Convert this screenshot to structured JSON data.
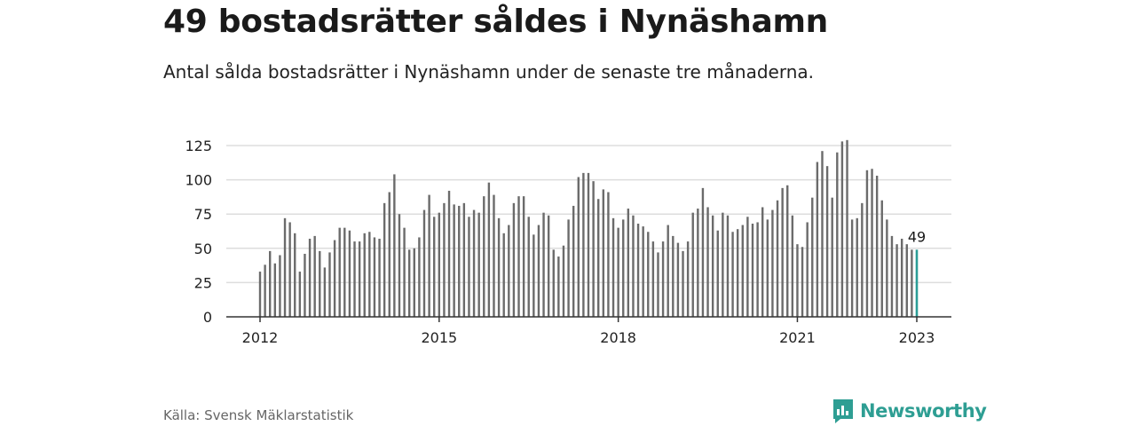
{
  "header": {
    "title": "49 bostadsrätter såldes i Nynäshamn",
    "subtitle": "Antal sålda bostadsrätter i Nynäshamn under de senaste tre månaderna."
  },
  "footer": {
    "source": "Källa: Svensk Mäklarstatistik",
    "brand": "Newsworthy"
  },
  "colors": {
    "bar": "#6b6b6b",
    "highlight": "#2a9d96",
    "grid": "#dddddd",
    "axis": "#333333",
    "brand": "#2e9e93"
  },
  "chart_data": {
    "type": "bar",
    "title": "",
    "xlabel": "",
    "ylabel": "",
    "ylim": [
      0,
      130
    ],
    "y_ticks": [
      0,
      25,
      50,
      75,
      100,
      125
    ],
    "x_ticks": [
      "2012",
      "2015",
      "2018",
      "2021",
      "2023"
    ],
    "x_start": "2012-01",
    "x_end": "2023-01",
    "grid": true,
    "highlight_label": "49",
    "series": [
      {
        "values": [
          33,
          38,
          48,
          39,
          45,
          72,
          69,
          61,
          33,
          46,
          57,
          59,
          48,
          36,
          47,
          56,
          65,
          65,
          63,
          55,
          55,
          61,
          62,
          58,
          57,
          83,
          91,
          104,
          75,
          65,
          49,
          50,
          58,
          78,
          89,
          73,
          76,
          83,
          92,
          82,
          81,
          83,
          73,
          78,
          76,
          88,
          98,
          89,
          72,
          61,
          67,
          83,
          88,
          88,
          73,
          60,
          67,
          76,
          74,
          49,
          44,
          52,
          71,
          81,
          102,
          105,
          105,
          99,
          86,
          93,
          91,
          72,
          65,
          71,
          79,
          74,
          68,
          66,
          62,
          55,
          47,
          55,
          67,
          59,
          54,
          48,
          55,
          76,
          79,
          94,
          80,
          74,
          63,
          76,
          74,
          62,
          64,
          67,
          73,
          68,
          69,
          80,
          71,
          78,
          85,
          94,
          96,
          74,
          53,
          51,
          69,
          87,
          113,
          121,
          110,
          87,
          120,
          128,
          129,
          71,
          72,
          83,
          107,
          108,
          103,
          85,
          71,
          59,
          53,
          57,
          53,
          49,
          49
        ]
      }
    ]
  }
}
